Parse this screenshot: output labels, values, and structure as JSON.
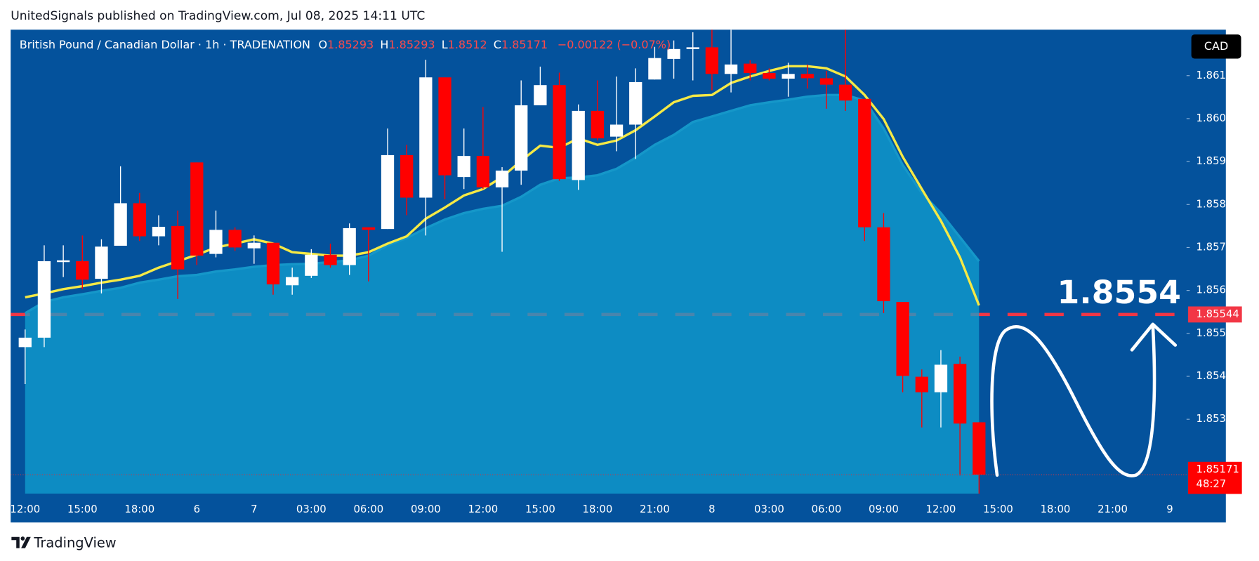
{
  "header": {
    "title": "UnitedSignals published on TradingView.com, Jul 08, 2025 14:11 UTC"
  },
  "footer": {
    "brand": "TradingView"
  },
  "chart_data": {
    "type": "candlestick",
    "symbol": "British Pound / Canadian Dollar · 1h · TRADENATION",
    "ohlc_labels": [
      "O",
      "H",
      "L",
      "C"
    ],
    "change": "−0.00122 (−0.07%)",
    "currency": "CAD",
    "countdown": "48:27",
    "up_color": "#ffffff",
    "down_color": "#ff0000",
    "categories": [
      "12:00",
      null,
      null,
      "15:00",
      null,
      null,
      "18:00",
      null,
      null,
      "6",
      null,
      null,
      "7",
      null,
      null,
      "03:00",
      null,
      null,
      "06:00",
      null,
      null,
      "09:00",
      null,
      null,
      "12:00",
      null,
      null,
      "15:00",
      null,
      null,
      "18:00",
      null,
      null,
      "21:00",
      null,
      null,
      "8",
      null,
      null,
      "03:00",
      null,
      null,
      "06:00",
      null,
      null,
      "09:00",
      null,
      null,
      "12:00",
      null,
      null,
      "15:00",
      null,
      null,
      "18:00",
      null,
      null,
      "21:00",
      null,
      null,
      "9"
    ],
    "open": [
      1.85468,
      1.8549,
      1.85666,
      1.85668,
      1.85627,
      1.85704,
      1.85803,
      1.85726,
      1.8575,
      1.85898,
      1.85685,
      1.85741,
      1.85698,
      1.85711,
      1.85612,
      1.85634,
      1.85683,
      1.85659,
      1.85747,
      1.85743,
      1.85915,
      1.85816,
      1.86096,
      1.85864,
      1.85913,
      1.8584,
      1.85879,
      1.86031,
      1.86078,
      1.85857,
      1.86018,
      1.85958,
      1.85986,
      1.86091,
      1.86139,
      1.86162,
      1.86166,
      1.86104,
      1.86128,
      1.86106,
      1.86093,
      1.86104,
      1.86094,
      1.86079,
      1.86046,
      1.85747,
      1.85573,
      1.85399,
      1.85363,
      1.85429,
      1.85293,
      null,
      null,
      null,
      null,
      null,
      null,
      null,
      null,
      null,
      null
    ],
    "high": [
      1.85509,
      1.85705,
      1.85705,
      1.85728,
      1.85719,
      1.85889,
      1.85827,
      1.85775,
      1.85786,
      1.85898,
      1.85786,
      1.85747,
      1.85728,
      1.85711,
      1.85653,
      1.85696,
      1.85709,
      1.85756,
      1.85747,
      1.85977,
      1.85939,
      1.86137,
      1.86096,
      1.85977,
      1.86027,
      1.85887,
      1.86089,
      1.86121,
      1.86107,
      1.86033,
      1.86089,
      1.86098,
      1.86117,
      1.86167,
      1.86182,
      1.86201,
      1.86207,
      1.86207,
      1.86136,
      1.86117,
      1.8613,
      1.86126,
      1.86111,
      1.86207,
      1.86046,
      1.8578,
      1.85573,
      1.85416,
      1.85461,
      1.85446,
      1.85293,
      null,
      null,
      null,
      null,
      null,
      null,
      null,
      null,
      null,
      null
    ],
    "low": [
      1.85382,
      1.85468,
      1.85631,
      1.85603,
      1.85593,
      1.85704,
      1.85715,
      1.85705,
      1.8558,
      1.85659,
      1.85677,
      1.85692,
      1.85662,
      1.8559,
      1.8559,
      1.85629,
      1.85653,
      1.85636,
      1.85621,
      1.85743,
      1.85775,
      1.85728,
      1.85812,
      1.85836,
      1.85836,
      1.8569,
      1.85846,
      1.86031,
      1.85855,
      1.85834,
      1.85949,
      1.85924,
      1.85906,
      1.86091,
      1.86093,
      1.86089,
      1.86066,
      1.86061,
      1.86089,
      1.86089,
      1.86051,
      1.8607,
      1.86023,
      1.86018,
      1.85715,
      1.85547,
      1.85363,
      1.85281,
      1.85281,
      1.85169,
      1.8512,
      null,
      null,
      null,
      null,
      null,
      null,
      null,
      null,
      null,
      null
    ],
    "close": [
      1.8549,
      1.85668,
      1.8567,
      1.85625,
      1.85702,
      1.85803,
      1.85726,
      1.85748,
      1.85649,
      1.85681,
      1.85741,
      1.857,
      1.85711,
      1.85614,
      1.85631,
      1.85683,
      1.85659,
      1.85745,
      1.85741,
      1.85915,
      1.85816,
      1.86096,
      1.85868,
      1.85913,
      1.8584,
      1.85879,
      1.86031,
      1.86078,
      1.85859,
      1.86018,
      1.85954,
      1.85986,
      1.86085,
      1.86141,
      1.86162,
      1.86166,
      1.86104,
      1.86126,
      1.86106,
      1.86093,
      1.86104,
      1.86094,
      1.86079,
      1.86042,
      1.85747,
      1.85575,
      1.85401,
      1.85363,
      1.85427,
      1.8529,
      1.85171,
      null,
      null,
      null,
      null,
      null,
      null,
      null,
      null,
      null,
      null
    ],
    "series": [
      {
        "color": "#1597c9",
        "fill": "#10a0d0",
        "values": [
          1.85547,
          1.85573,
          1.85584,
          1.85591,
          1.85599,
          1.85606,
          1.85618,
          1.85625,
          1.85633,
          1.85636,
          1.85644,
          1.85649,
          1.85655,
          1.85659,
          1.85661,
          1.85662,
          1.85666,
          1.8567,
          1.85681,
          1.85705,
          1.85722,
          1.85745,
          1.85765,
          1.8578,
          1.8579,
          1.85797,
          1.85818,
          1.85846,
          1.85861,
          1.85863,
          1.85868,
          1.85883,
          1.85909,
          1.85939,
          1.85962,
          1.85992,
          1.86005,
          1.86018,
          1.86031,
          1.86038,
          1.86044,
          1.86051,
          1.86055,
          1.86055,
          1.86042,
          1.85977,
          1.85892,
          1.85827,
          1.8578,
          1.85724,
          1.85668,
          null,
          null,
          null,
          null,
          null,
          null,
          null,
          null,
          null,
          null
        ]
      },
      {
        "color": "#f5e945",
        "values": [
          1.85584,
          1.85593,
          1.85603,
          1.8561,
          1.85618,
          1.85625,
          1.85634,
          1.85653,
          1.85668,
          1.85683,
          1.857,
          1.85709,
          1.85719,
          1.85709,
          1.85689,
          1.85685,
          1.85681,
          1.85681,
          1.85689,
          1.85709,
          1.85726,
          1.85767,
          1.85793,
          1.85821,
          1.85836,
          1.85864,
          1.85902,
          1.85937,
          1.85932,
          1.85954,
          1.85939,
          1.85949,
          1.85973,
          1.86005,
          1.86038,
          1.86053,
          1.86055,
          1.86083,
          1.86098,
          1.86111,
          1.86122,
          1.86122,
          1.86117,
          1.86098,
          1.86055,
          1.85999,
          1.85911,
          1.85836,
          1.85762,
          1.85677,
          1.85565,
          null,
          null,
          null,
          null,
          null,
          null,
          null,
          null,
          null,
          null
        ]
      }
    ],
    "levels": [
      {
        "value": 1.85544,
        "color": "#f23645"
      }
    ],
    "annotation": "1.8554",
    "ylim": [
      1.85127,
      1.86207
    ],
    "yticks": [
      {
        "value": 1.853,
        "label": "1.85300"
      },
      {
        "value": 1.854,
        "label": "1.85400"
      },
      {
        "value": 1.855,
        "label": "1.85500"
      },
      {
        "value": 1.856,
        "label": "1.85600"
      },
      {
        "value": 1.857,
        "label": "1.85700"
      },
      {
        "value": 1.858,
        "label": "1.85800"
      },
      {
        "value": 1.859,
        "label": "1.85900"
      },
      {
        "value": 1.86,
        "label": "1.86000"
      },
      {
        "value": 1.861,
        "label": "1.86100"
      }
    ]
  }
}
